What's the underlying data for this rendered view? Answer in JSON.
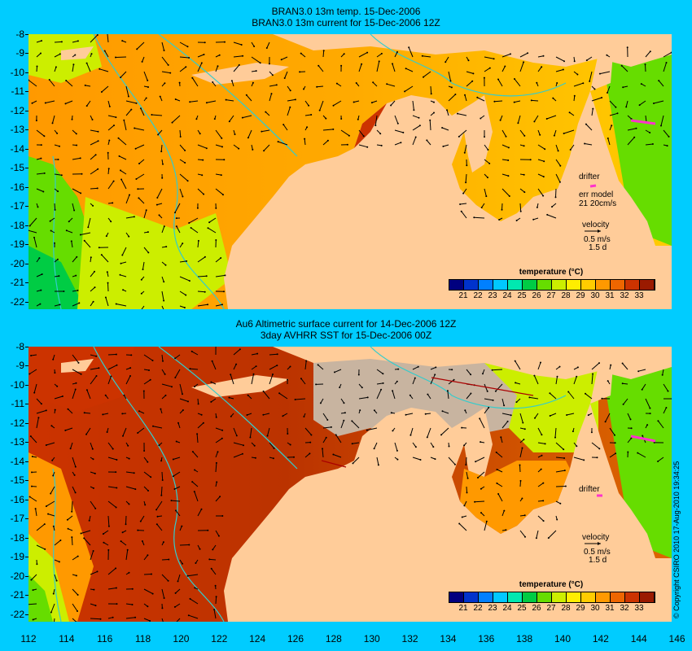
{
  "panels": [
    {
      "title1": "BRAN3.0 13m temp. 15-Dec-2006",
      "title2": "BRAN3.0 13m current for 15-Dec-2006 12Z",
      "drifter_label": "drifter",
      "err_label": "err model",
      "err_value": "21 20cm/s",
      "velocity_label": "velocity",
      "velocity_scale": "0.5 m/s",
      "velocity_time": "1.5 d",
      "legend_title": "temperature (°C)"
    },
    {
      "title1": "Au6 Altimetric surface current for 14-Dec-2006 12Z",
      "title2": "3day AVHRR SST for 15-Dec-2006 00Z",
      "drifter_label": "drifter",
      "velocity_label": "velocity",
      "velocity_scale": "0.5 m/s",
      "velocity_time": "1.5 d",
      "legend_title": "temperature (°C)"
    }
  ],
  "lat_labels": [
    "-8",
    "-9",
    "-10",
    "-11",
    "-12",
    "-13",
    "-14",
    "-15",
    "-16",
    "-17",
    "-18",
    "-19",
    "-20",
    "-21",
    "-22"
  ],
  "lon_labels": [
    "112",
    "114",
    "116",
    "118",
    "120",
    "122",
    "124",
    "126",
    "128",
    "130",
    "132",
    "134",
    "136",
    "138",
    "140",
    "142",
    "144",
    "146"
  ],
  "colorbar_labels": [
    "21",
    "22",
    "23",
    "24",
    "25",
    "26",
    "27",
    "28",
    "29",
    "30",
    "31",
    "32",
    "33"
  ],
  "colorbar_colors": [
    "#00007f",
    "#0033cc",
    "#0080ff",
    "#00c8ff",
    "#00e8b0",
    "#00cc44",
    "#66dd00",
    "#ccee00",
    "#ffee00",
    "#ffcc00",
    "#ff9900",
    "#ee6600",
    "#cc3300",
    "#9a1a00"
  ],
  "copyright": "© Copyright CSIRO 2010   17-Aug-2010 19:34:25",
  "colors": {
    "background": "#00ccff",
    "land": "#ffcc99",
    "no_data": "#c8b4a0",
    "bathymetry": "#33cccc",
    "drifter": "#ff33cc"
  }
}
